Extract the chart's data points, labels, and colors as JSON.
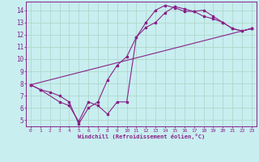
{
  "background_color": "#c8eef0",
  "grid_color": "#b0d8cc",
  "line_color": "#882288",
  "xlabel": "Windchill (Refroidissement éolien,°C)",
  "ylabel_ticks": [
    5,
    6,
    7,
    8,
    9,
    10,
    11,
    12,
    13,
    14
  ],
  "xlim": [
    -0.5,
    23.5
  ],
  "ylim": [
    4.5,
    14.7
  ],
  "xticks": [
    0,
    1,
    2,
    3,
    4,
    5,
    6,
    7,
    8,
    9,
    10,
    11,
    12,
    13,
    14,
    15,
    16,
    17,
    18,
    19,
    20,
    21,
    22,
    23
  ],
  "line1_x": [
    0,
    1,
    3,
    4,
    5,
    6,
    7,
    8,
    9,
    10,
    11,
    12,
    13,
    14,
    15,
    16,
    17,
    18,
    19,
    20,
    21,
    22,
    23
  ],
  "line1_y": [
    7.9,
    7.5,
    6.5,
    6.2,
    4.9,
    6.5,
    6.2,
    5.5,
    6.5,
    6.5,
    11.8,
    12.6,
    13.0,
    13.8,
    14.3,
    14.1,
    13.9,
    14.0,
    13.5,
    13.0,
    12.5,
    12.3,
    12.5
  ],
  "line2_x": [
    0,
    1,
    2,
    3,
    4,
    5,
    6,
    7,
    8,
    9,
    10,
    11,
    12,
    13,
    14,
    15,
    16,
    17,
    18,
    19,
    20,
    21,
    22,
    23
  ],
  "line2_y": [
    7.9,
    7.5,
    7.3,
    7.0,
    6.5,
    4.7,
    6.0,
    6.5,
    8.3,
    9.5,
    10.2,
    11.8,
    13.0,
    14.0,
    14.4,
    14.2,
    13.9,
    13.9,
    13.5,
    13.3,
    13.0,
    12.5,
    12.3,
    12.5
  ],
  "line3_x": [
    0,
    23
  ],
  "line3_y": [
    7.9,
    12.5
  ]
}
